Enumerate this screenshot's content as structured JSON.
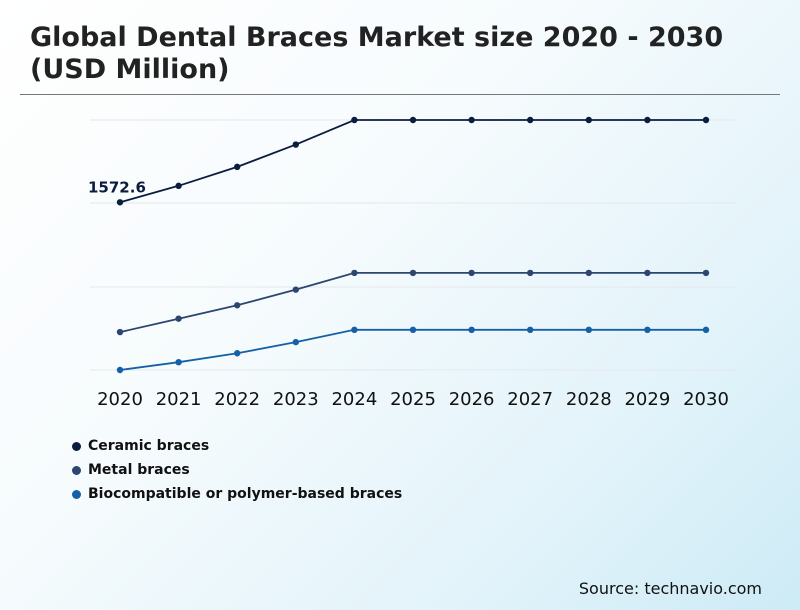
{
  "title": "Global Dental Braces Market size 2020 - 2030 (USD Million)",
  "source": "Source: technavio.com",
  "chart_data": {
    "type": "line",
    "title": "Global Dental Braces Market size 2020 - 2030 (USD Million)",
    "xlabel": "",
    "ylabel": "",
    "categories": [
      "2020",
      "2021",
      "2022",
      "2023",
      "2024",
      "2025",
      "2026",
      "2027",
      "2028",
      "2029",
      "2030"
    ],
    "grid": true,
    "ylim": [
      0,
      3500
    ],
    "series": [
      {
        "name": "Ceramic braces",
        "color": "#0b1d3f",
        "values": [
          1572.6,
          1720,
          1890,
          2090,
          2310,
          2310,
          2310,
          2310,
          2310,
          2310,
          2310
        ]
      },
      {
        "name": "Metal braces",
        "color": "#2c4670",
        "values": [
          410,
          530,
          650,
          790,
          940,
          940,
          940,
          940,
          940,
          940,
          940
        ]
      },
      {
        "name": "Biocompatible or polymer-based braces",
        "color": "#1560a6",
        "values": [
          70,
          140,
          220,
          320,
          430,
          430,
          430,
          430,
          430,
          430,
          430
        ]
      }
    ],
    "annotations": [
      {
        "series": 0,
        "index": 0,
        "text": "1572.6"
      }
    ],
    "legend_position": "bottom-left"
  }
}
